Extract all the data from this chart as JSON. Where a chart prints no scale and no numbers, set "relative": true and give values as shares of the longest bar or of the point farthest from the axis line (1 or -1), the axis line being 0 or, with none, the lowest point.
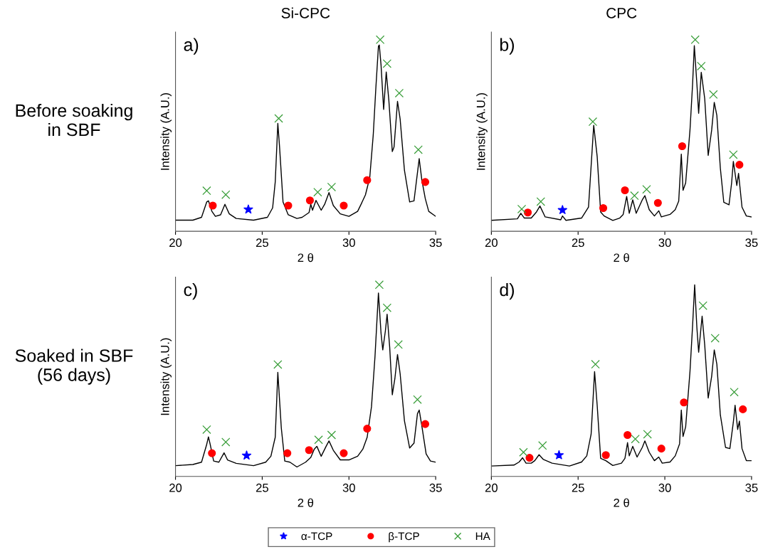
{
  "chart_data": [
    {
      "type": "line",
      "title": "Si-CPC",
      "xlabel": "2 θ",
      "ylabel": "Intensity (A.U.)",
      "relative": true,
      "xlim": [
        20,
        35
      ],
      "xticks": [
        20,
        25,
        30,
        35
      ],
      "grid": false,
      "annotations": [
        "a)",
        "Before soaking\nin SBF"
      ],
      "series": [
        {
          "type": "line",
          "color": "#000000",
          "marker": "none",
          "x": [
            20.0,
            21.0,
            21.5,
            21.8,
            21.9,
            22.1,
            22.3,
            22.6,
            22.85,
            23.1,
            23.5,
            24.5,
            25.3,
            25.6,
            25.75,
            25.9,
            26.0,
            26.2,
            26.5,
            27.0,
            27.3,
            27.7,
            27.8,
            27.9,
            28.1,
            28.4,
            28.6,
            28.85,
            29.1,
            29.5,
            30.0,
            30.5,
            30.7,
            30.95,
            31.05,
            31.2,
            31.4,
            31.55,
            31.7,
            31.75,
            31.85,
            32.0,
            32.15,
            32.3,
            32.5,
            32.6,
            32.8,
            32.95,
            33.2,
            33.5,
            33.75,
            33.9,
            34.05,
            34.2,
            34.4,
            34.6,
            35.0
          ],
          "values": [
            0.058,
            0.058,
            0.073,
            0.153,
            0.159,
            0.104,
            0.078,
            0.086,
            0.141,
            0.091,
            0.067,
            0.058,
            0.073,
            0.122,
            0.257,
            0.563,
            0.44,
            0.153,
            0.086,
            0.067,
            0.073,
            0.098,
            0.141,
            0.11,
            0.161,
            0.11,
            0.141,
            0.202,
            0.134,
            0.091,
            0.078,
            0.104,
            0.141,
            0.19,
            0.226,
            0.281,
            0.502,
            0.746,
            0.966,
            0.972,
            0.868,
            0.636,
            0.831,
            0.684,
            0.416,
            0.44,
            0.678,
            0.587,
            0.318,
            0.153,
            0.159,
            0.269,
            0.379,
            0.269,
            0.171,
            0.104,
            0.078
          ]
        },
        {
          "type": "scatter",
          "color": "#0000ff",
          "marker": "star",
          "x": [
            24.2
          ],
          "values": [
            0.114
          ]
        },
        {
          "type": "scatter",
          "color": "#ff0000",
          "marker": "circle",
          "x": [
            22.15,
            26.5,
            27.75,
            29.7,
            31.05,
            34.4
          ],
          "values": [
            0.134,
            0.134,
            0.161,
            0.134,
            0.267,
            0.257
          ]
        },
        {
          "type": "scatter",
          "color": "#3a9e3a",
          "marker": "cross",
          "x": [
            21.8,
            22.9,
            25.95,
            28.2,
            29.0,
            31.8,
            32.2,
            32.9,
            34.0
          ],
          "values": [
            0.212,
            0.191,
            0.589,
            0.204,
            0.231,
            1.0,
            0.875,
            0.721,
            0.426
          ]
        }
      ]
    },
    {
      "type": "line",
      "title": "CPC",
      "xlabel": "2 θ",
      "ylabel": "Intensity (A.U.)",
      "relative": true,
      "xlim": [
        20,
        35
      ],
      "xticks": [
        20,
        25,
        30,
        35
      ],
      "grid": false,
      "annotations": [
        "b)"
      ],
      "series": [
        {
          "type": "line",
          "color": "#000000",
          "marker": "none",
          "x": [
            20.0,
            21.5,
            21.7,
            21.9,
            22.3,
            22.6,
            22.8,
            23.1,
            24.0,
            24.1,
            24.3,
            25.2,
            25.6,
            25.9,
            26.1,
            26.3,
            26.5,
            27.0,
            27.4,
            27.6,
            27.8,
            27.95,
            28.15,
            28.35,
            28.7,
            28.85,
            29.1,
            29.4,
            29.65,
            29.8,
            30.3,
            30.6,
            30.8,
            30.95,
            31.05,
            31.2,
            31.45,
            31.6,
            31.7,
            31.85,
            31.95,
            32.1,
            32.3,
            32.5,
            32.7,
            32.85,
            33.0,
            33.2,
            33.4,
            33.7,
            33.85,
            33.95,
            34.15,
            34.25,
            34.45,
            34.7,
            35.0
          ],
          "values": [
            0.057,
            0.065,
            0.094,
            0.069,
            0.069,
            0.101,
            0.132,
            0.075,
            0.06,
            0.08,
            0.057,
            0.069,
            0.126,
            0.553,
            0.39,
            0.101,
            0.08,
            0.057,
            0.069,
            0.088,
            0.182,
            0.094,
            0.164,
            0.094,
            0.164,
            0.186,
            0.113,
            0.08,
            0.107,
            0.075,
            0.088,
            0.113,
            0.157,
            0.403,
            0.214,
            0.252,
            0.528,
            0.767,
            0.969,
            0.767,
            0.616,
            0.83,
            0.692,
            0.396,
            0.528,
            0.673,
            0.604,
            0.33,
            0.151,
            0.138,
            0.252,
            0.365,
            0.239,
            0.302,
            0.126,
            0.08,
            0.075
          ]
        },
        {
          "type": "scatter",
          "color": "#0000ff",
          "marker": "star",
          "x": [
            24.1
          ],
          "values": [
            0.111
          ]
        },
        {
          "type": "scatter",
          "color": "#ff0000",
          "marker": "circle",
          "x": [
            22.1,
            26.45,
            27.7,
            29.6,
            31.0,
            34.3
          ],
          "values": [
            0.098,
            0.121,
            0.214,
            0.148,
            0.444,
            0.347
          ]
        },
        {
          "type": "scatter",
          "color": "#3a9e3a",
          "marker": "cross",
          "x": [
            21.75,
            22.85,
            25.85,
            28.25,
            28.95,
            31.75,
            32.1,
            32.8,
            33.95
          ],
          "values": [
            0.116,
            0.155,
            0.572,
            0.186,
            0.219,
            1.0,
            0.862,
            0.714,
            0.4
          ]
        }
      ]
    },
    {
      "type": "line",
      "xlabel": "2 θ",
      "ylabel": "Intensity (A.U.)",
      "relative": true,
      "xlim": [
        20,
        35
      ],
      "xticks": [
        20,
        25,
        30,
        35
      ],
      "grid": false,
      "annotations": [
        "c)",
        "Soaked in SBF\n(56 days)"
      ],
      "series": [
        {
          "type": "line",
          "color": "#000000",
          "marker": "none",
          "x": [
            20.0,
            21.0,
            21.5,
            21.8,
            21.9,
            22.0,
            22.2,
            22.5,
            22.8,
            23.0,
            23.5,
            24.5,
            25.2,
            25.5,
            25.75,
            25.9,
            26.1,
            26.3,
            26.6,
            27.0,
            27.5,
            27.8,
            28.0,
            28.15,
            28.4,
            28.7,
            28.85,
            29.1,
            29.5,
            30.0,
            30.5,
            30.8,
            31.05,
            31.3,
            31.5,
            31.7,
            31.85,
            31.95,
            32.1,
            32.2,
            32.35,
            32.5,
            32.65,
            32.8,
            32.95,
            33.2,
            33.5,
            33.75,
            33.95,
            34.05,
            34.2,
            34.45,
            34.7,
            35.0
          ],
          "values": [
            0.056,
            0.062,
            0.074,
            0.167,
            0.206,
            0.167,
            0.08,
            0.074,
            0.123,
            0.086,
            0.068,
            0.056,
            0.074,
            0.105,
            0.204,
            0.543,
            0.253,
            0.08,
            0.074,
            0.049,
            0.074,
            0.099,
            0.142,
            0.157,
            0.105,
            0.16,
            0.185,
            0.136,
            0.086,
            0.086,
            0.105,
            0.142,
            0.204,
            0.364,
            0.623,
            0.957,
            0.747,
            0.66,
            0.759,
            0.846,
            0.673,
            0.426,
            0.512,
            0.636,
            0.537,
            0.29,
            0.148,
            0.173,
            0.327,
            0.346,
            0.265,
            0.117,
            0.08,
            0.074
          ]
        },
        {
          "type": "scatter",
          "color": "#0000ff",
          "marker": "star",
          "x": [
            24.1
          ],
          "values": [
            0.109
          ]
        },
        {
          "type": "scatter",
          "color": "#ff0000",
          "marker": "circle",
          "x": [
            22.1,
            26.45,
            27.7,
            29.7,
            31.05,
            34.4
          ],
          "values": [
            0.121,
            0.121,
            0.137,
            0.121,
            0.249,
            0.273
          ]
        },
        {
          "type": "scatter",
          "color": "#3a9e3a",
          "marker": "cross",
          "x": [
            21.8,
            22.9,
            25.9,
            28.25,
            29.0,
            31.75,
            32.2,
            32.85,
            33.95
          ],
          "values": [
            0.244,
            0.179,
            0.584,
            0.191,
            0.216,
            1.0,
            0.88,
            0.688,
            0.401
          ]
        }
      ]
    },
    {
      "type": "line",
      "xlabel": "2 θ",
      "relative": true,
      "xlim": [
        20,
        35
      ],
      "xticks": [
        20,
        25,
        30,
        35
      ],
      "grid": false,
      "legend": "bottom",
      "annotations": [
        "d)"
      ],
      "series": [
        {
          "type": "line",
          "color": "#000000",
          "marker": "none",
          "x": [
            20.0,
            21.3,
            21.6,
            21.8,
            22.0,
            22.3,
            22.5,
            22.75,
            23.0,
            23.5,
            24.5,
            25.2,
            25.5,
            25.75,
            25.95,
            26.1,
            26.3,
            26.6,
            27.0,
            27.5,
            27.7,
            27.85,
            27.95,
            28.15,
            28.4,
            28.7,
            28.85,
            29.1,
            29.4,
            29.65,
            29.85,
            30.3,
            30.6,
            30.85,
            30.95,
            31.05,
            31.2,
            31.45,
            31.6,
            31.72,
            31.85,
            31.95,
            32.15,
            32.3,
            32.5,
            32.7,
            32.85,
            33.0,
            33.2,
            33.5,
            33.75,
            33.95,
            34.05,
            34.2,
            34.3,
            34.45,
            34.7,
            35.0
          ],
          "values": [
            0.054,
            0.059,
            0.075,
            0.097,
            0.069,
            0.069,
            0.082,
            0.113,
            0.088,
            0.069,
            0.054,
            0.075,
            0.107,
            0.22,
            0.547,
            0.371,
            0.094,
            0.082,
            0.057,
            0.069,
            0.094,
            0.176,
            0.107,
            0.157,
            0.101,
            0.151,
            0.185,
            0.126,
            0.082,
            0.101,
            0.069,
            0.075,
            0.107,
            0.17,
            0.346,
            0.208,
            0.258,
            0.547,
            0.786,
            1.0,
            0.774,
            0.648,
            0.836,
            0.686,
            0.409,
            0.522,
            0.66,
            0.585,
            0.321,
            0.151,
            0.145,
            0.283,
            0.371,
            0.245,
            0.289,
            0.145,
            0.082,
            0.082
          ]
        },
        {
          "type": "scatter",
          "name": "α-TCP",
          "color": "#0000ff",
          "marker": "star",
          "x": [
            23.9
          ],
          "values": [
            0.111
          ]
        },
        {
          "type": "scatter",
          "name": "β-TCP",
          "color": "#ff0000",
          "marker": "circle",
          "x": [
            22.2,
            26.6,
            27.85,
            29.8,
            31.1,
            34.5
          ],
          "values": [
            0.097,
            0.111,
            0.216,
            0.145,
            0.386,
            0.35
          ]
        },
        {
          "type": "scatter",
          "name": "HA",
          "color": "#3a9e3a",
          "marker": "cross",
          "x": [
            21.85,
            22.95,
            26.0,
            28.3,
            29.0,
            32.2,
            32.9,
            34.0
          ],
          "values": [
            0.126,
            0.161,
            0.585,
            0.195,
            0.22,
            0.891,
            0.721,
            0.44
          ]
        }
      ]
    }
  ]
}
